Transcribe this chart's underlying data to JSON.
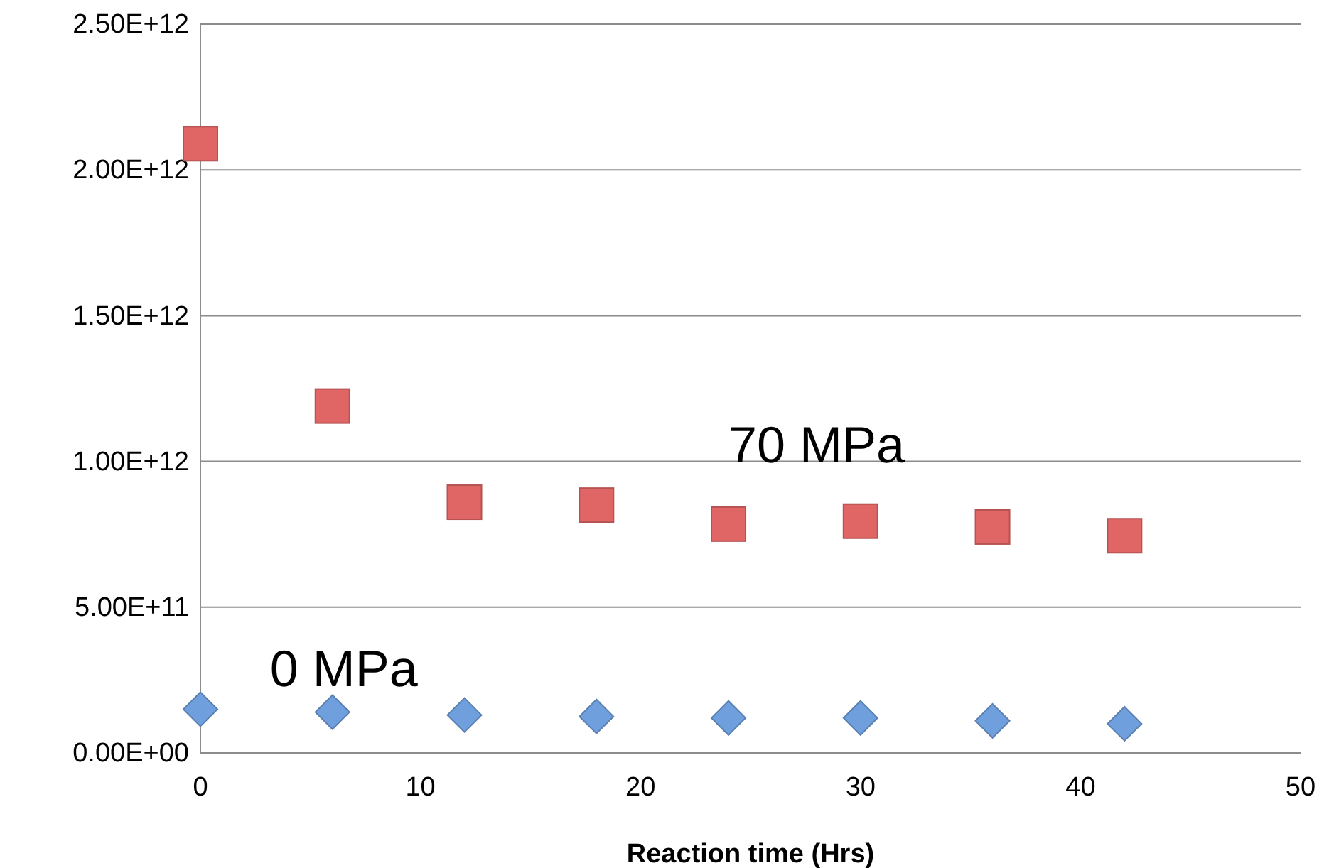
{
  "chart_data": {
    "type": "scatter",
    "xlabel": "Reaction time (Hrs)",
    "x": [
      0,
      6,
      12,
      18,
      24,
      30,
      36,
      42
    ],
    "series": [
      {
        "name": "70 MPa",
        "color": "#e06666",
        "marker": "square",
        "values": [
          2090000000000.0,
          1190000000000.0,
          860000000000.0,
          850000000000.0,
          785000000000.0,
          795000000000.0,
          775000000000.0,
          745000000000.0
        ]
      },
      {
        "name": "0 MPa",
        "color": "#6f9fdc",
        "marker": "diamond",
        "values": [
          150000000000.0,
          140000000000.0,
          130000000000.0,
          125000000000.0,
          120000000000.0,
          120000000000.0,
          110000000000.0,
          100000000000.0
        ]
      }
    ],
    "xlim": [
      0,
      50
    ],
    "xticks": [
      0,
      10,
      20,
      30,
      40,
      50
    ],
    "ylim": [
      0,
      2500000000000.0
    ],
    "yticks": [
      {
        "value": 0,
        "label": "0.00E+00"
      },
      {
        "value": 500000000000.0,
        "label": "5.00E+11"
      },
      {
        "value": 1000000000000.0,
        "label": "1.00E+12"
      },
      {
        "value": 1500000000000.0,
        "label": "1.50E+12"
      },
      {
        "value": 2000000000000.0,
        "label": "2.00E+12"
      },
      {
        "value": 2500000000000.0,
        "label": "2.50E+12"
      }
    ],
    "grid": "y",
    "legend": false
  }
}
